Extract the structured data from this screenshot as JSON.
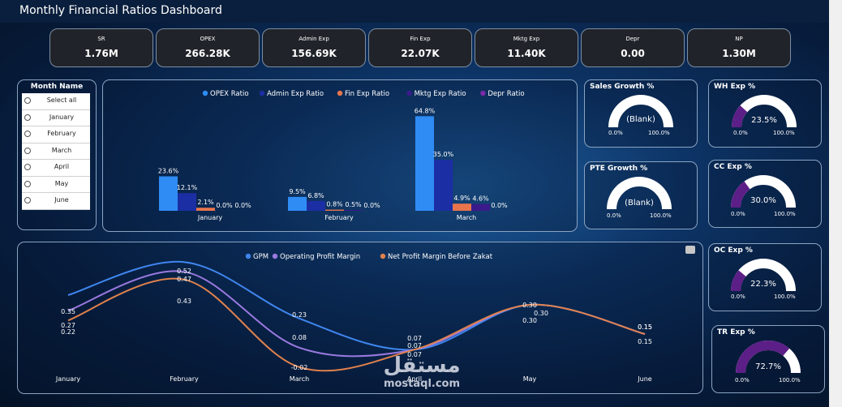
{
  "header": {
    "title": "Monthly Financial Ratios Dashboard"
  },
  "kpis": [
    {
      "label": "SR",
      "value": "1.76M"
    },
    {
      "label": "OPEX",
      "value": "266.28K"
    },
    {
      "label": "Admin Exp",
      "value": "156.69K"
    },
    {
      "label": "Fin Exp",
      "value": "22.07K"
    },
    {
      "label": "Mktg Exp",
      "value": "11.40K"
    },
    {
      "label": "Depr",
      "value": "0.00"
    },
    {
      "label": "NP",
      "value": "1.30M"
    }
  ],
  "slicer": {
    "title": "Month Name",
    "items": [
      "Select all",
      "January",
      "February",
      "March",
      "April",
      "May",
      "June"
    ]
  },
  "gauges": {
    "sales_growth": {
      "title": "Sales Growth %",
      "value": "(Blank)",
      "min": "0.0%",
      "max": "100.0%",
      "fraction": 0
    },
    "pte_growth": {
      "title": "PTE Growth %",
      "value": "(Blank)",
      "min": "0.0%",
      "max": "100.0%",
      "fraction": 0
    },
    "wh_exp": {
      "title": "WH Exp %",
      "value": "23.5%",
      "min": "0.0%",
      "max": "100.0%",
      "fraction": 0.235
    },
    "cc_exp": {
      "title": "CC Exp %",
      "value": "30.0%",
      "min": "0.0%",
      "max": "100.0%",
      "fraction": 0.3
    },
    "oc_exp": {
      "title": "OC Exp %",
      "value": "22.3%",
      "min": "0.0%",
      "max": "100.0%",
      "fraction": 0.223
    },
    "tr_exp": {
      "title": "TR Exp %",
      "value": "72.7%",
      "min": "0.0%",
      "max": "100.0%",
      "fraction": 0.727
    }
  },
  "colors": {
    "opex": "#2f8cf5",
    "admin": "#1c2ea3",
    "fin": "#e8744c",
    "mktg": "#3b1a8c",
    "depr": "#7a2aa8",
    "gpm": "#3f86ee",
    "opm": "#9a79e0",
    "npm": "#e0814c",
    "gauge_fill": "#5c1f87",
    "gauge_bg": "#ffffff"
  },
  "chart_data": [
    {
      "type": "bar",
      "categories": [
        "January",
        "February",
        "March"
      ],
      "series": [
        {
          "name": "OPEX Ratio",
          "values": [
            23.6,
            9.5,
            64.8
          ],
          "labels": [
            "23.6%",
            "9.5%",
            "64.8%"
          ]
        },
        {
          "name": "Admin Exp Ratio",
          "values": [
            12.1,
            6.8,
            35.0
          ],
          "labels": [
            "12.1%",
            "6.8%",
            "35.0%"
          ]
        },
        {
          "name": "Fin Exp Ratio",
          "values": [
            2.1,
            0.8,
            4.9
          ],
          "labels": [
            "2.1%",
            "0.8%",
            "4.9%"
          ]
        },
        {
          "name": "Mktg Exp Ratio",
          "values": [
            0.0,
            0.5,
            4.6
          ],
          "labels": [
            "0.0%",
            "0.5%",
            "4.6%"
          ]
        },
        {
          "name": "Depr Ratio",
          "values": [
            0.0,
            0.0,
            0.0
          ],
          "labels": [
            "0.0%",
            "0.0%",
            "0.0%"
          ]
        }
      ]
    },
    {
      "type": "line",
      "categories": [
        "January",
        "February",
        "March",
        "April",
        "May",
        "June"
      ],
      "series": [
        {
          "name": "GPM",
          "values": [
            0.35,
            0.52,
            0.23,
            0.07,
            0.3,
            0.15
          ],
          "labels": [
            "0.35",
            "0.52",
            "0.23",
            "0.07",
            "0.30",
            "0.15"
          ]
        },
        {
          "name": "Operating Profit Margin",
          "values": [
            0.27,
            0.47,
            0.08,
            0.07,
            0.3,
            0.15
          ],
          "labels": [
            "0.27",
            "0.47",
            "0.08",
            "0.07",
            "0.30",
            "0.15"
          ]
        },
        {
          "name": "Net Profit Margin Before Zakat",
          "values": [
            0.22,
            0.43,
            -0.02,
            0.07,
            0.3,
            0.15
          ],
          "labels": [
            "0.22",
            "0.43",
            "-0.02",
            "0.07",
            "0.30",
            "0.15"
          ]
        }
      ]
    }
  ],
  "watermark": {
    "arabic": "مستقل",
    "latin": "mostaql.com"
  }
}
